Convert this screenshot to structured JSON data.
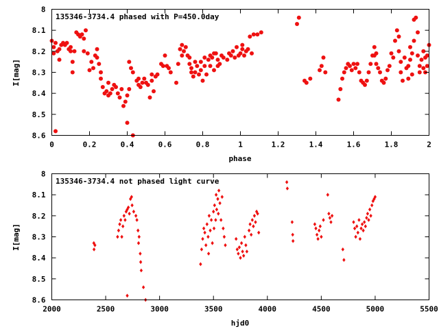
{
  "chart_data": [
    {
      "type": "scatter",
      "title": "135346-3734.4 phased with P=450.0day",
      "xlabel": "phase",
      "ylabel": "I[mag]",
      "xlim": [
        0,
        2
      ],
      "ylim": [
        8,
        8.6
      ],
      "y_inverted": true,
      "x_ticks": [
        "0",
        "0.2",
        "0.4",
        "0.6",
        "0.8",
        "1",
        "1.2",
        "1.4",
        "1.6",
        "1.8",
        "2"
      ],
      "y_ticks": [
        "8",
        "8.1",
        "8.2",
        "8.3",
        "8.4",
        "8.5",
        "8.6"
      ],
      "marker": "filled-circle",
      "color": "#ee1111",
      "points": [
        [
          0.0,
          8.15
        ],
        [
          0.01,
          8.18
        ],
        [
          0.01,
          8.21
        ],
        [
          0.02,
          8.16
        ],
        [
          0.02,
          8.58
        ],
        [
          0.03,
          8.2
        ],
        [
          0.04,
          8.19
        ],
        [
          0.04,
          8.24
        ],
        [
          0.05,
          8.17
        ],
        [
          0.06,
          8.16
        ],
        [
          0.07,
          8.17
        ],
        [
          0.08,
          8.16
        ],
        [
          0.09,
          8.19
        ],
        [
          0.1,
          8.18
        ],
        [
          0.1,
          8.2
        ],
        [
          0.11,
          8.25
        ],
        [
          0.11,
          8.3
        ],
        [
          0.12,
          8.2
        ],
        [
          0.13,
          8.11
        ],
        [
          0.14,
          8.12
        ],
        [
          0.15,
          8.13
        ],
        [
          0.16,
          8.12
        ],
        [
          0.17,
          8.14
        ],
        [
          0.17,
          8.2
        ],
        [
          0.18,
          8.1
        ],
        [
          0.19,
          8.21
        ],
        [
          0.2,
          8.29
        ],
        [
          0.21,
          8.25
        ],
        [
          0.22,
          8.28
        ],
        [
          0.23,
          8.22
        ],
        [
          0.24,
          8.19
        ],
        [
          0.24,
          8.23
        ],
        [
          0.25,
          8.26
        ],
        [
          0.26,
          8.3
        ],
        [
          0.26,
          8.33
        ],
        [
          0.27,
          8.37
        ],
        [
          0.28,
          8.4
        ],
        [
          0.29,
          8.39
        ],
        [
          0.3,
          8.41
        ],
        [
          0.3,
          8.35
        ],
        [
          0.31,
          8.4
        ],
        [
          0.32,
          8.38
        ],
        [
          0.33,
          8.36
        ],
        [
          0.34,
          8.37
        ],
        [
          0.35,
          8.4
        ],
        [
          0.36,
          8.42
        ],
        [
          0.37,
          8.38
        ],
        [
          0.38,
          8.46
        ],
        [
          0.39,
          8.44
        ],
        [
          0.4,
          8.41
        ],
        [
          0.4,
          8.54
        ],
        [
          0.41,
          8.38
        ],
        [
          0.41,
          8.25
        ],
        [
          0.42,
          8.28
        ],
        [
          0.43,
          8.3
        ],
        [
          0.43,
          8.6
        ],
        [
          0.45,
          8.34
        ],
        [
          0.46,
          8.33
        ],
        [
          0.46,
          8.36
        ],
        [
          0.47,
          8.37
        ],
        [
          0.48,
          8.35
        ],
        [
          0.49,
          8.33
        ],
        [
          0.5,
          8.35
        ],
        [
          0.51,
          8.36
        ],
        [
          0.52,
          8.42
        ],
        [
          0.53,
          8.34
        ],
        [
          0.53,
          8.31
        ],
        [
          0.54,
          8.39
        ],
        [
          0.55,
          8.32
        ],
        [
          0.56,
          8.31
        ],
        [
          0.58,
          8.26
        ],
        [
          0.59,
          8.27
        ],
        [
          0.6,
          8.22
        ],
        [
          0.61,
          8.27
        ],
        [
          0.62,
          8.28
        ],
        [
          0.63,
          8.3
        ],
        [
          0.66,
          8.35
        ],
        [
          0.67,
          8.26
        ],
        [
          0.68,
          8.19
        ],
        [
          0.69,
          8.22
        ],
        [
          0.69,
          8.17
        ],
        [
          0.7,
          8.2
        ],
        [
          0.71,
          8.18
        ],
        [
          0.72,
          8.22
        ],
        [
          0.73,
          8.23
        ],
        [
          0.73,
          8.26
        ],
        [
          0.74,
          8.28
        ],
        [
          0.74,
          8.3
        ],
        [
          0.75,
          8.32
        ],
        [
          0.76,
          8.25
        ],
        [
          0.76,
          8.3
        ],
        [
          0.77,
          8.27
        ],
        [
          0.78,
          8.31
        ],
        [
          0.79,
          8.29
        ],
        [
          0.79,
          8.25
        ],
        [
          0.8,
          8.34
        ],
        [
          0.81,
          8.23
        ],
        [
          0.81,
          8.27
        ],
        [
          0.82,
          8.31
        ],
        [
          0.83,
          8.24
        ],
        [
          0.84,
          8.22
        ],
        [
          0.84,
          8.27
        ],
        [
          0.85,
          8.23
        ],
        [
          0.86,
          8.21
        ],
        [
          0.86,
          8.29
        ],
        [
          0.87,
          8.21
        ],
        [
          0.88,
          8.24
        ],
        [
          0.88,
          8.27
        ],
        [
          0.89,
          8.26
        ],
        [
          0.9,
          8.22
        ],
        [
          0.91,
          8.23
        ],
        [
          0.93,
          8.24
        ],
        [
          0.94,
          8.21
        ],
        [
          0.95,
          8.22
        ],
        [
          0.96,
          8.2
        ],
        [
          0.97,
          8.23
        ],
        [
          0.98,
          8.18
        ],
        [
          0.99,
          8.22
        ],
        [
          1.0,
          8.21
        ],
        [
          1.01,
          8.19
        ],
        [
          1.01,
          8.17
        ],
        [
          1.02,
          8.22
        ],
        [
          1.03,
          8.2
        ],
        [
          1.04,
          8.19
        ],
        [
          1.05,
          8.13
        ],
        [
          1.06,
          8.21
        ],
        [
          1.07,
          8.12
        ],
        [
          1.09,
          8.12
        ],
        [
          1.11,
          8.11
        ],
        [
          1.3,
          8.07
        ],
        [
          1.31,
          8.04
        ],
        [
          1.34,
          8.34
        ],
        [
          1.35,
          8.35
        ],
        [
          1.37,
          8.33
        ],
        [
          1.42,
          8.29
        ],
        [
          1.43,
          8.27
        ],
        [
          1.44,
          8.23
        ],
        [
          1.45,
          8.3
        ],
        [
          1.52,
          8.43
        ],
        [
          1.53,
          8.38
        ],
        [
          1.54,
          8.33
        ],
        [
          1.55,
          8.3
        ],
        [
          1.56,
          8.28
        ],
        [
          1.57,
          8.26
        ],
        [
          1.58,
          8.27
        ],
        [
          1.59,
          8.29
        ],
        [
          1.6,
          8.26
        ],
        [
          1.61,
          8.28
        ],
        [
          1.62,
          8.26
        ],
        [
          1.63,
          8.3
        ],
        [
          1.64,
          8.34
        ],
        [
          1.65,
          8.35
        ],
        [
          1.66,
          8.36
        ],
        [
          1.67,
          8.34
        ],
        [
          1.68,
          8.3
        ],
        [
          1.69,
          8.26
        ],
        [
          1.7,
          8.22
        ],
        [
          1.71,
          8.18
        ],
        [
          1.71,
          8.22
        ],
        [
          1.72,
          8.21
        ],
        [
          1.72,
          8.26
        ],
        [
          1.73,
          8.28
        ],
        [
          1.74,
          8.3
        ],
        [
          1.75,
          8.34
        ],
        [
          1.76,
          8.35
        ],
        [
          1.77,
          8.33
        ],
        [
          1.78,
          8.29
        ],
        [
          1.79,
          8.27
        ],
        [
          1.8,
          8.21
        ],
        [
          1.81,
          8.23
        ],
        [
          1.82,
          8.15
        ],
        [
          1.83,
          8.1
        ],
        [
          1.84,
          8.13
        ],
        [
          1.84,
          8.2
        ],
        [
          1.85,
          8.25
        ],
        [
          1.85,
          8.3
        ],
        [
          1.86,
          8.34
        ],
        [
          1.87,
          8.23
        ],
        [
          1.88,
          8.28
        ],
        [
          1.89,
          8.27
        ],
        [
          1.89,
          8.33
        ],
        [
          1.9,
          8.24
        ],
        [
          1.9,
          8.18
        ],
        [
          1.91,
          8.21
        ],
        [
          1.91,
          8.31
        ],
        [
          1.92,
          8.05
        ],
        [
          1.92,
          8.15
        ],
        [
          1.93,
          8.04
        ],
        [
          1.94,
          8.11
        ],
        [
          1.94,
          8.22
        ],
        [
          1.95,
          8.3
        ],
        [
          1.95,
          8.27
        ],
        [
          1.96,
          8.24
        ],
        [
          1.97,
          8.2
        ],
        [
          1.97,
          8.28
        ],
        [
          1.98,
          8.23
        ],
        [
          1.98,
          8.3
        ],
        [
          1.99,
          8.27
        ],
        [
          1.99,
          8.22
        ],
        [
          2.0,
          8.17
        ]
      ]
    },
    {
      "type": "scatter",
      "title": "135346-3734.4 not phased light curve",
      "xlabel": "hjd0",
      "ylabel": "I[mag]",
      "xlim": [
        2000,
        5500
      ],
      "ylim": [
        8,
        8.6
      ],
      "y_inverted": true,
      "x_ticks": [
        "2000",
        "2500",
        "3000",
        "3500",
        "4000",
        "4500",
        "5000",
        "5500"
      ],
      "y_ticks": [
        "8",
        "8.1",
        "8.2",
        "8.3",
        "8.4",
        "8.5",
        "8.6"
      ],
      "marker": "small-diamond",
      "color": "#ee1111",
      "points": [
        [
          2390,
          8.33
        ],
        [
          2392,
          8.36
        ],
        [
          2400,
          8.34
        ],
        [
          2610,
          8.3
        ],
        [
          2620,
          8.27
        ],
        [
          2630,
          8.24
        ],
        [
          2640,
          8.22
        ],
        [
          2650,
          8.3
        ],
        [
          2660,
          8.25
        ],
        [
          2670,
          8.2
        ],
        [
          2680,
          8.22
        ],
        [
          2690,
          8.18
        ],
        [
          2700,
          8.58
        ],
        [
          2700,
          8.17
        ],
        [
          2710,
          8.16
        ],
        [
          2720,
          8.19
        ],
        [
          2730,
          8.12
        ],
        [
          2740,
          8.11
        ],
        [
          2745,
          8.15
        ],
        [
          2760,
          8.18
        ],
        [
          2780,
          8.2
        ],
        [
          2790,
          8.22
        ],
        [
          2800,
          8.27
        ],
        [
          2805,
          8.33
        ],
        [
          2810,
          8.3
        ],
        [
          2820,
          8.38
        ],
        [
          2825,
          8.42
        ],
        [
          2830,
          8.46
        ],
        [
          2850,
          8.54
        ],
        [
          2870,
          8.6
        ],
        [
          3380,
          8.43
        ],
        [
          3390,
          8.36
        ],
        [
          3400,
          8.31
        ],
        [
          3410,
          8.26
        ],
        [
          3420,
          8.28
        ],
        [
          3430,
          8.34
        ],
        [
          3440,
          8.24
        ],
        [
          3450,
          8.3
        ],
        [
          3455,
          8.38
        ],
        [
          3460,
          8.2
        ],
        [
          3470,
          8.27
        ],
        [
          3480,
          8.22
        ],
        [
          3490,
          8.33
        ],
        [
          3500,
          8.18
        ],
        [
          3505,
          8.26
        ],
        [
          3510,
          8.15
        ],
        [
          3520,
          8.22
        ],
        [
          3525,
          8.1
        ],
        [
          3530,
          8.17
        ],
        [
          3540,
          8.12
        ],
        [
          3545,
          8.19
        ],
        [
          3550,
          8.08
        ],
        [
          3560,
          8.14
        ],
        [
          3570,
          8.22
        ],
        [
          3580,
          8.11
        ],
        [
          3590,
          8.26
        ],
        [
          3600,
          8.3
        ],
        [
          3610,
          8.34
        ],
        [
          3710,
          8.31
        ],
        [
          3720,
          8.36
        ],
        [
          3730,
          8.38
        ],
        [
          3740,
          8.35
        ],
        [
          3750,
          8.4
        ],
        [
          3760,
          8.33
        ],
        [
          3770,
          8.37
        ],
        [
          3780,
          8.39
        ],
        [
          3790,
          8.3
        ],
        [
          3800,
          8.34
        ],
        [
          3810,
          8.37
        ],
        [
          3830,
          8.27
        ],
        [
          3840,
          8.24
        ],
        [
          3850,
          8.29
        ],
        [
          3860,
          8.22
        ],
        [
          3870,
          8.25
        ],
        [
          3880,
          8.2
        ],
        [
          3890,
          8.23
        ],
        [
          3900,
          8.18
        ],
        [
          3910,
          8.19
        ],
        [
          3920,
          8.28
        ],
        [
          4180,
          8.04
        ],
        [
          4185,
          8.07
        ],
        [
          4230,
          8.23
        ],
        [
          4235,
          8.29
        ],
        [
          4238,
          8.32
        ],
        [
          4440,
          8.24
        ],
        [
          4450,
          8.26
        ],
        [
          4460,
          8.29
        ],
        [
          4470,
          8.31
        ],
        [
          4480,
          8.27
        ],
        [
          4490,
          8.25
        ],
        [
          4500,
          8.3
        ],
        [
          4520,
          8.22
        ],
        [
          4560,
          8.1
        ],
        [
          4570,
          8.19
        ],
        [
          4580,
          8.21
        ],
        [
          4590,
          8.23
        ],
        [
          4600,
          8.2
        ],
        [
          4700,
          8.36
        ],
        [
          4710,
          8.41
        ],
        [
          4800,
          8.23
        ],
        [
          4810,
          8.26
        ],
        [
          4820,
          8.3
        ],
        [
          4830,
          8.25
        ],
        [
          4840,
          8.28
        ],
        [
          4850,
          8.22
        ],
        [
          4860,
          8.31
        ],
        [
          4870,
          8.26
        ],
        [
          4880,
          8.24
        ],
        [
          4890,
          8.27
        ],
        [
          4900,
          8.23
        ],
        [
          4910,
          8.25
        ],
        [
          4920,
          8.21
        ],
        [
          4930,
          8.19
        ],
        [
          4940,
          8.22
        ],
        [
          4950,
          8.17
        ],
        [
          4960,
          8.2
        ],
        [
          4970,
          8.15
        ],
        [
          4980,
          8.13
        ],
        [
          4990,
          8.12
        ],
        [
          5000,
          8.11
        ]
      ]
    }
  ]
}
